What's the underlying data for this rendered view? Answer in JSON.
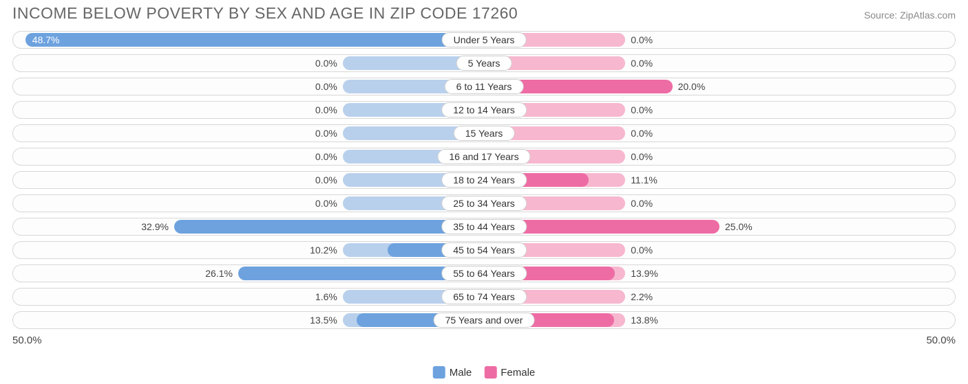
{
  "title": "INCOME BELOW POVERTY BY SEX AND AGE IN ZIP CODE 17260",
  "source": "Source: ZipAtlas.com",
  "colors": {
    "male_bar": "#6da2de",
    "male_baseline": "#b9d0ec",
    "female_bar": "#ee6ca4",
    "female_baseline": "#f7b7cf",
    "track_border": "#d7d7d7",
    "background": "#ffffff",
    "text": "#444444"
  },
  "axis": {
    "max_pct": 50.0,
    "left_label": "50.0%",
    "right_label": "50.0%",
    "baseline_pct": 15.0
  },
  "legend": {
    "male": "Male",
    "female": "Female"
  },
  "rows": [
    {
      "category": "Under 5 Years",
      "male": 48.7,
      "female": 0.0
    },
    {
      "category": "5 Years",
      "male": 0.0,
      "female": 0.0
    },
    {
      "category": "6 to 11 Years",
      "male": 0.0,
      "female": 20.0
    },
    {
      "category": "12 to 14 Years",
      "male": 0.0,
      "female": 0.0
    },
    {
      "category": "15 Years",
      "male": 0.0,
      "female": 0.0
    },
    {
      "category": "16 and 17 Years",
      "male": 0.0,
      "female": 0.0
    },
    {
      "category": "18 to 24 Years",
      "male": 0.0,
      "female": 11.1
    },
    {
      "category": "25 to 34 Years",
      "male": 0.0,
      "female": 0.0
    },
    {
      "category": "35 to 44 Years",
      "male": 32.9,
      "female": 25.0
    },
    {
      "category": "45 to 54 Years",
      "male": 10.2,
      "female": 0.0
    },
    {
      "category": "55 to 64 Years",
      "male": 26.1,
      "female": 13.9
    },
    {
      "category": "65 to 74 Years",
      "male": 1.6,
      "female": 2.2
    },
    {
      "category": "75 Years and over",
      "male": 13.5,
      "female": 13.8
    }
  ]
}
